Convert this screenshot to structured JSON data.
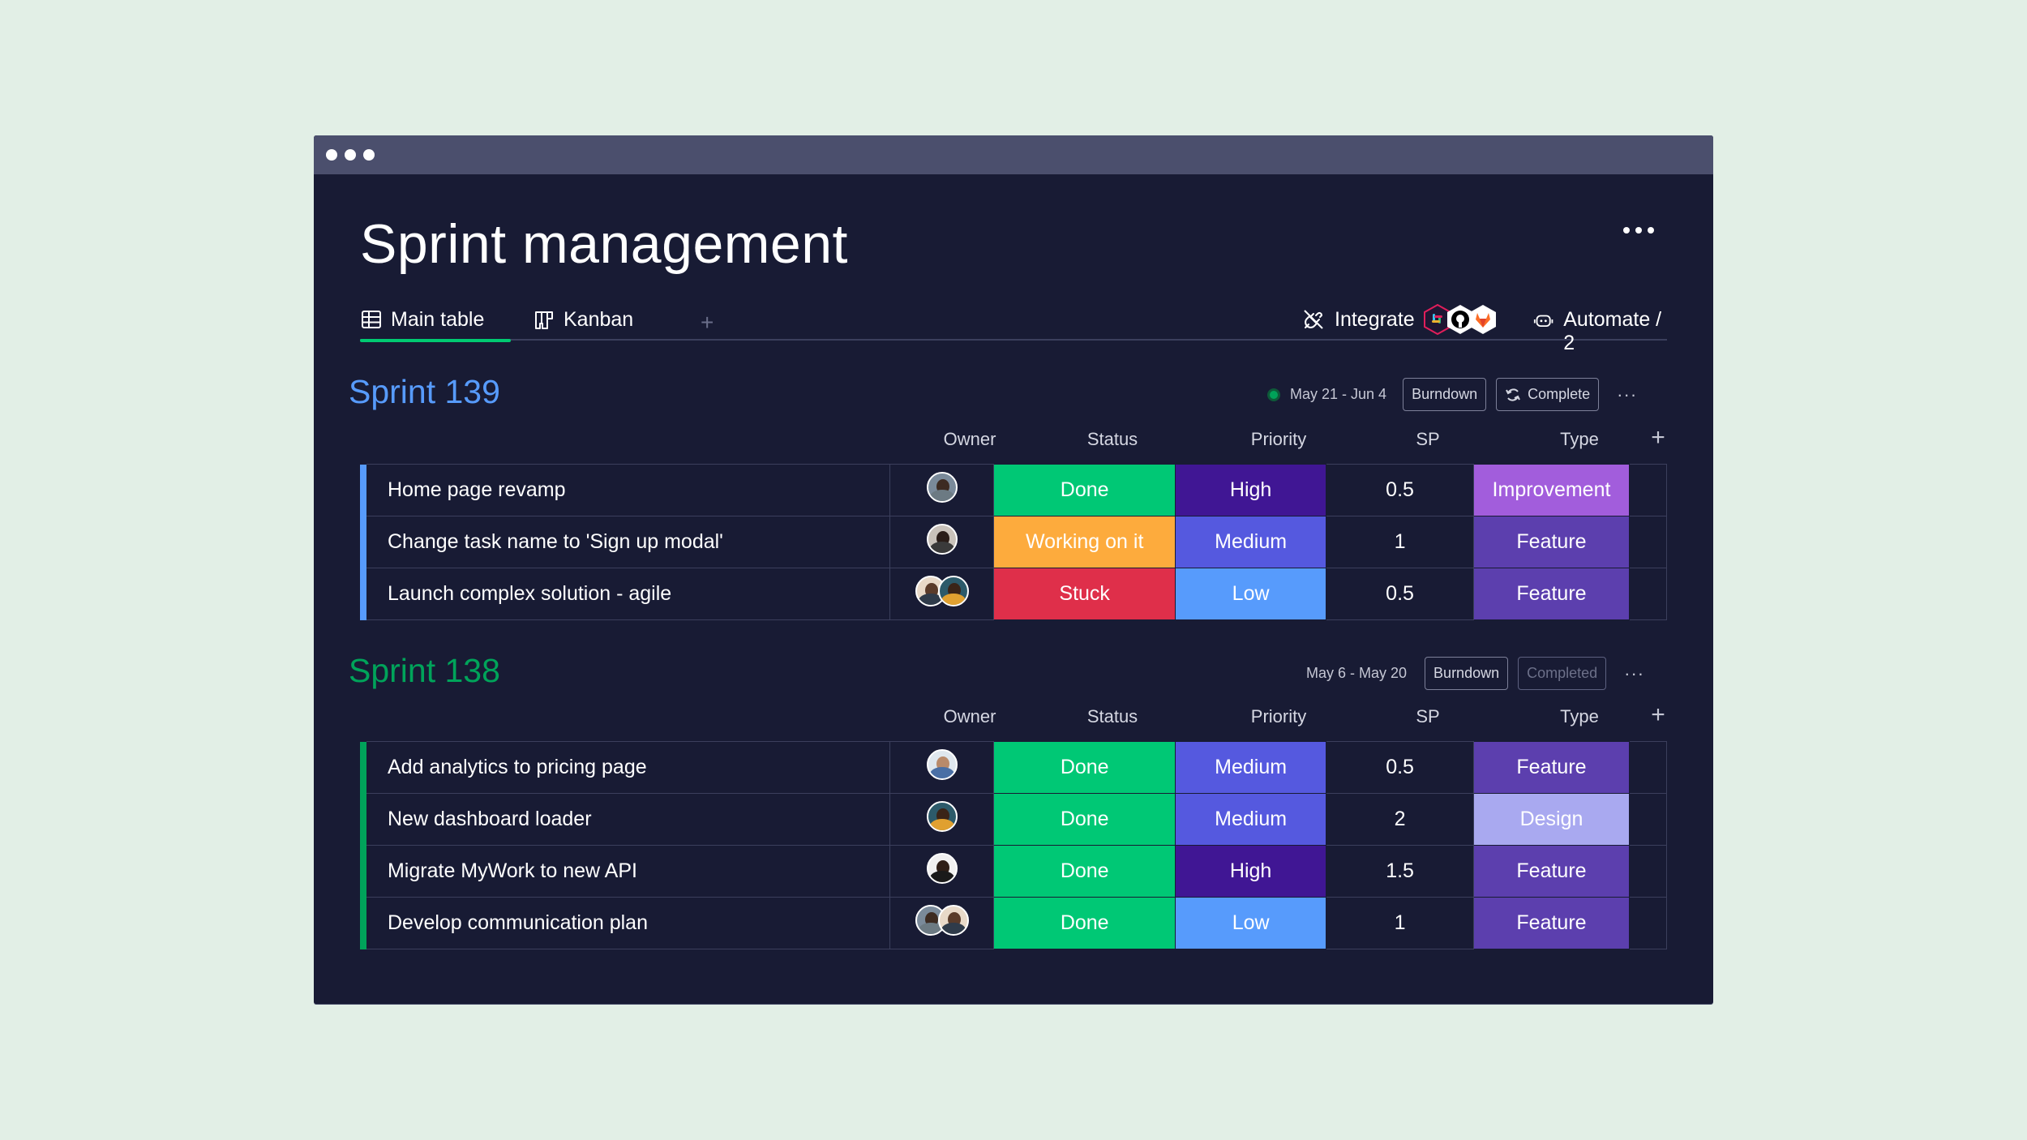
{
  "window": {
    "title": "Sprint management"
  },
  "tabs": {
    "main_table": "Main table",
    "kanban": "Kanban",
    "add": "+",
    "integrate": "Integrate",
    "automate": "Automate / 2"
  },
  "columns": {
    "owner": "Owner",
    "status": "Status",
    "priority": "Priority",
    "sp": "SP",
    "type": "Type",
    "add": "+"
  },
  "colors": {
    "done": "#00c875",
    "working": "#fdab3d",
    "stuck": "#df2f4a",
    "high": "#401694",
    "medium": "#5559df",
    "low": "#579bfc",
    "feature": "#5c3fae",
    "improvement": "#a25ddc",
    "design": "#a9a9f0",
    "sprint139": "#579bfc",
    "sprint138": "#00a35a"
  },
  "groups": [
    {
      "title": "Sprint 139",
      "dates": "May 21 - Jun 4",
      "burndown": "Burndown",
      "complete": "Complete",
      "rows": [
        {
          "name": "Home page revamp",
          "owners": 1,
          "status": "Done",
          "priority": "High",
          "sp": "0.5",
          "type": "Improvement"
        },
        {
          "name": "Change task name to 'Sign up modal'",
          "owners": 1,
          "status": "Working on it",
          "priority": "Medium",
          "sp": "1",
          "type": "Feature"
        },
        {
          "name": "Launch complex solution - agile",
          "owners": 2,
          "status": "Stuck",
          "priority": "Low",
          "sp": "0.5",
          "type": "Feature"
        }
      ]
    },
    {
      "title": "Sprint 138",
      "dates": "May 6 - May 20",
      "burndown": "Burndown",
      "complete": "Completed",
      "rows": [
        {
          "name": "Add analytics to pricing page",
          "owners": 1,
          "status": "Done",
          "priority": "Medium",
          "sp": "0.5",
          "type": "Feature"
        },
        {
          "name": "New dashboard loader",
          "owners": 1,
          "status": "Done",
          "priority": "Medium",
          "sp": "2",
          "type": "Design"
        },
        {
          "name": "Migrate MyWork to new API",
          "owners": 1,
          "status": "Done",
          "priority": "High",
          "sp": "1.5",
          "type": "Feature"
        },
        {
          "name": "Develop communication plan",
          "owners": 2,
          "status": "Done",
          "priority": "Low",
          "sp": "1",
          "type": "Feature"
        }
      ]
    }
  ]
}
